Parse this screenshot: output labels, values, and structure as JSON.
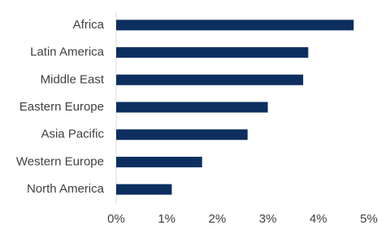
{
  "chart_data": {
    "type": "bar",
    "orientation": "horizontal",
    "categories": [
      "Africa",
      "Latin America",
      "Middle East",
      "Eastern Europe",
      "Asia Pacific",
      "Western Europe",
      "North America"
    ],
    "values": [
      4.7,
      3.8,
      3.7,
      3.0,
      2.6,
      1.7,
      1.1
    ],
    "color": "#0d2f5f",
    "xlim": [
      0,
      5
    ],
    "xticks": [
      {
        "value": 0,
        "label": "0%"
      },
      {
        "value": 1,
        "label": "1%"
      },
      {
        "value": 2,
        "label": "2%"
      },
      {
        "value": 3,
        "label": "3%"
      },
      {
        "value": 4,
        "label": "4%"
      },
      {
        "value": 5,
        "label": "5%"
      }
    ],
    "grid": false
  }
}
